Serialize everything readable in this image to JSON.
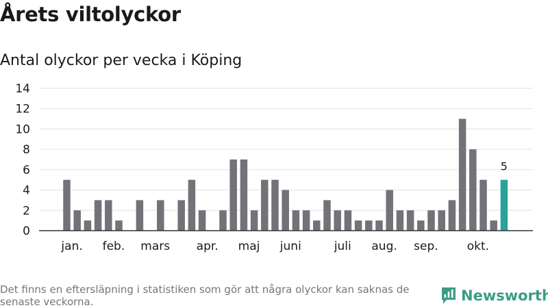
{
  "title": "Årets viltolyckor",
  "subtitle": "Antal olyckor per vecka i Köping",
  "footnote": "Det finns en eftersläpning i statistiken som gör att några olyckor kan saknas de senaste veckorna.",
  "brand": {
    "name": "Newsworthy",
    "icon": "newsworthy-logo-icon"
  },
  "colors": {
    "bar": "#737278",
    "highlight": "#2aa297",
    "grid": "#e0e0e0",
    "axis": "#333333",
    "brand": "#3a9d83"
  },
  "chart_data": {
    "type": "bar",
    "title": "Antal olyckor per vecka i Köping",
    "xlabel": "",
    "ylabel": "",
    "ylim": [
      0,
      14
    ],
    "yticks": [
      0,
      2,
      4,
      6,
      8,
      10,
      12,
      14
    ],
    "grid": true,
    "weeks": [
      1,
      2,
      3,
      4,
      5,
      6,
      7,
      8,
      9,
      10,
      11,
      12,
      13,
      14,
      15,
      16,
      17,
      18,
      19,
      20,
      21,
      22,
      23,
      24,
      25,
      26,
      27,
      28,
      29,
      30,
      31,
      32,
      33,
      34,
      35,
      36,
      37,
      38,
      39,
      40,
      41,
      42,
      43
    ],
    "values": [
      5,
      2,
      1,
      3,
      3,
      1,
      0,
      3,
      0,
      3,
      0,
      3,
      5,
      2,
      0,
      2,
      7,
      7,
      2,
      5,
      5,
      4,
      2,
      2,
      1,
      3,
      2,
      2,
      1,
      1,
      1,
      4,
      2,
      2,
      1,
      2,
      2,
      3,
      11,
      8,
      5,
      1,
      5
    ],
    "highlight_index": 42,
    "highlight_label": "5",
    "month_labels": [
      {
        "label": "jan.",
        "week": 1.5
      },
      {
        "label": "feb.",
        "week": 5.5
      },
      {
        "label": "mars",
        "week": 9.5
      },
      {
        "label": "apr.",
        "week": 14.5
      },
      {
        "label": "maj",
        "week": 18.5
      },
      {
        "label": "juni",
        "week": 22.5
      },
      {
        "label": "juli",
        "week": 27.5
      },
      {
        "label": "aug.",
        "week": 31.5
      },
      {
        "label": "sep.",
        "week": 35.5
      },
      {
        "label": "okt.",
        "week": 40.5
      }
    ]
  }
}
